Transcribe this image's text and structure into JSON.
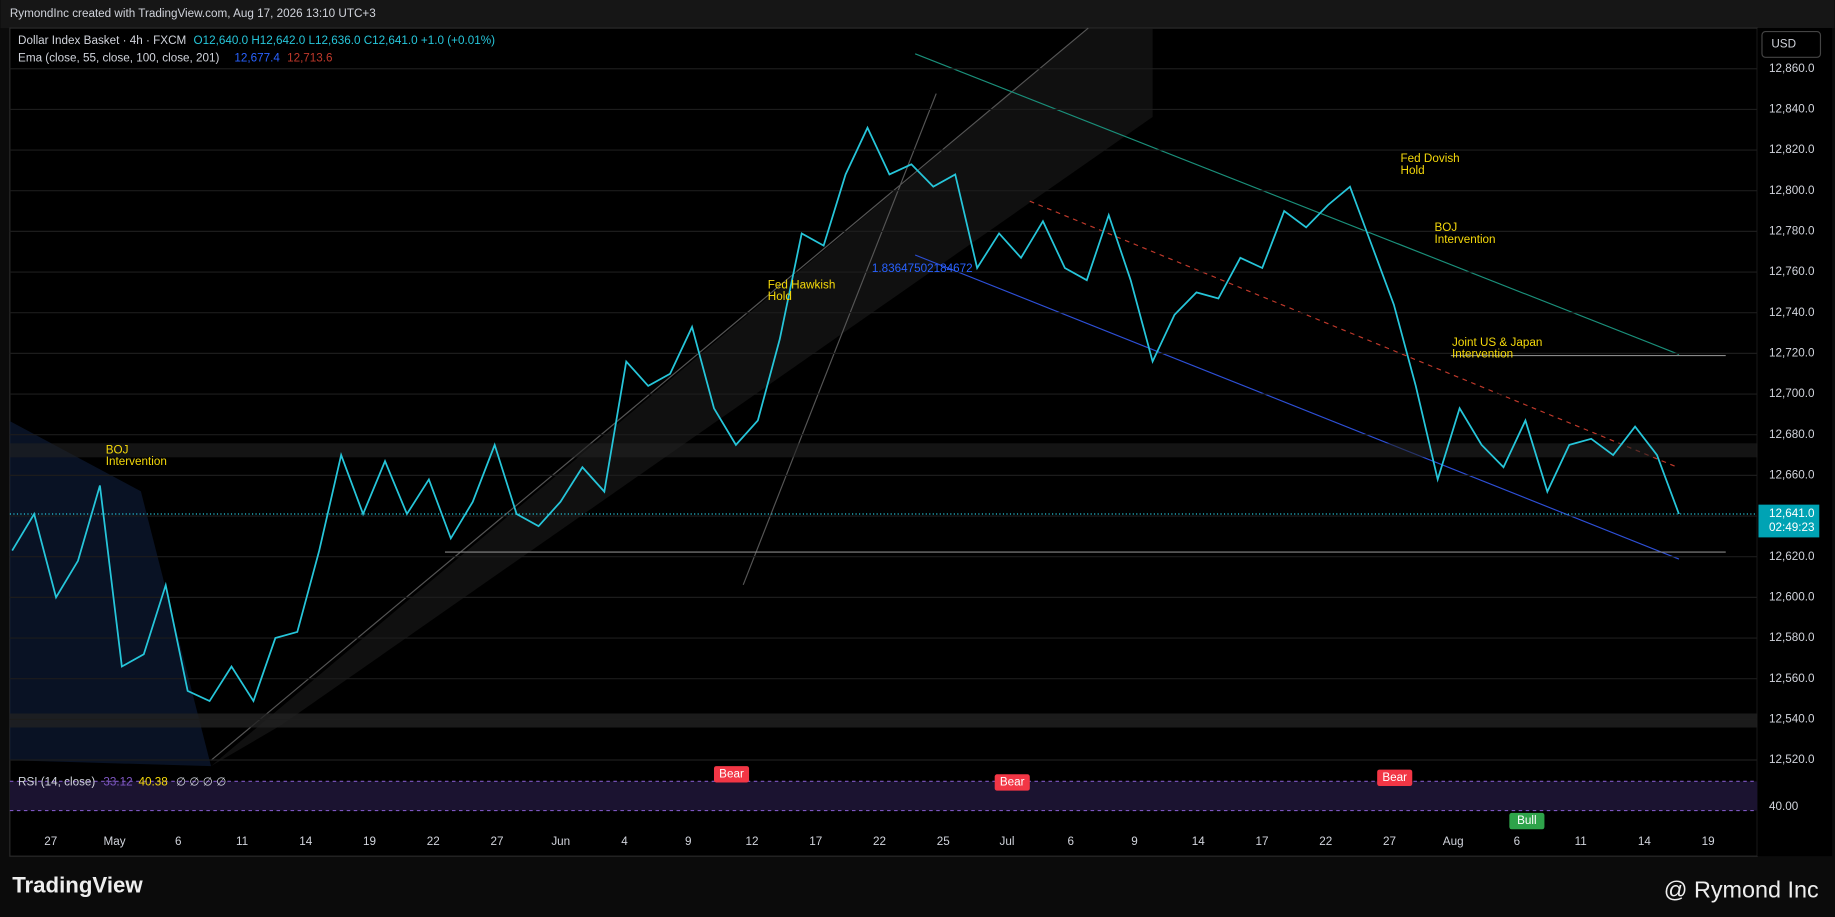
{
  "header": {
    "credit": "RymondInc created with TradingView.com, Aug 17, 2026 13:10 UTC+3",
    "symbol": "Dollar Index Basket · 4h · FXCM",
    "ohlc": "O12,640.0 H12,642.0 L12,636.0 C12,641.0 +1.0 (+0.01%)",
    "ema_label": "Ema (close, 55, close, 100, close, 201)",
    "ema_values": [
      "12,677.4",
      "12,713.6"
    ],
    "currency": "USD"
  },
  "chart_data": {
    "type": "line",
    "series": [
      {
        "name": "Dollar Index Basket",
        "color": "#26c6da",
        "values": [
          12623,
          12641,
          12600,
          12618,
          12655,
          12566,
          12572,
          12606,
          12554,
          12549,
          12566,
          12549,
          12580,
          12583,
          12623,
          12670,
          12641,
          12667,
          12641,
          12658,
          12629,
          12647,
          12675,
          12641,
          12635,
          12647,
          12664,
          12652,
          12716,
          12704,
          12710,
          12733,
          12693,
          12675,
          12687,
          12727,
          12779,
          12773,
          12808,
          12831,
          12808,
          12813,
          12802,
          12808,
          12762,
          12779,
          12767,
          12785,
          12762,
          12756,
          12788,
          12756,
          12716,
          12739,
          12750,
          12747,
          12767,
          12762,
          12790,
          12782,
          12793,
          12802,
          12773,
          12744,
          12704,
          12658,
          12693,
          12675,
          12664,
          12687,
          12652,
          12675,
          12678,
          12670,
          12684,
          12670,
          12641
        ]
      }
    ],
    "ylim": [
      12517,
      12880
    ],
    "yticks": [
      {
        "value": 12520,
        "label": "12,520.0"
      },
      {
        "value": 12540,
        "label": "12,540.0"
      },
      {
        "value": 12560,
        "label": "12,560.0"
      },
      {
        "value": 12580,
        "label": "12,580.0"
      },
      {
        "value": 12600,
        "label": "12,600.0"
      },
      {
        "value": 12620,
        "label": "12,620.0"
      },
      {
        "value": 12640,
        "label": "12,640.0"
      },
      {
        "value": 12660,
        "label": "12,660.0"
      },
      {
        "value": 12680,
        "label": "12,680.0"
      },
      {
        "value": 12700,
        "label": "12,700.0"
      },
      {
        "value": 12720,
        "label": "12,720.0"
      },
      {
        "value": 12740,
        "label": "12,740.0"
      },
      {
        "value": 12760,
        "label": "12,760.0"
      },
      {
        "value": 12780,
        "label": "12,780.0"
      },
      {
        "value": 12800,
        "label": "12,800.0"
      },
      {
        "value": 12820,
        "label": "12,820.0"
      },
      {
        "value": 12840,
        "label": "12,840.0"
      },
      {
        "value": 12860,
        "label": "12,860.0"
      }
    ],
    "xtick_labels": [
      "27",
      "May",
      "6",
      "11",
      "14",
      "19",
      "22",
      "27",
      "Jun",
      "4",
      "9",
      "12",
      "17",
      "22",
      "25",
      "Jul",
      "6",
      "9",
      "14",
      "17",
      "22",
      "27",
      "Aug",
      "6",
      "11",
      "14",
      "19"
    ],
    "grid": true,
    "last_price": {
      "value": 12641,
      "label": "12,641.0",
      "countdown": "02:49:23"
    },
    "annotations": [
      {
        "lines": [
          "BOJ",
          "Intervention"
        ]
      },
      {
        "lines": [
          "Fed Hawkish",
          "Hold"
        ]
      },
      {
        "lines": [
          "1.83647502184672"
        ]
      },
      {
        "lines": [
          "Fed Dovish",
          "Hold"
        ]
      },
      {
        "lines": [
          "BOJ",
          "Intervention"
        ]
      },
      {
        "lines": [
          "Joint US & Japan",
          "Intervention"
        ]
      }
    ],
    "rsi": {
      "label": "RSI (14, close)",
      "values": [
        "33.12",
        "40.38",
        "∅ ∅ ∅ ∅"
      ],
      "tick": "40.00",
      "signals": [
        "Bear",
        "Bear",
        "Bear",
        "Bull"
      ]
    }
  },
  "footer": {
    "brand": "TradingView",
    "author": "@ Rymond Inc"
  }
}
